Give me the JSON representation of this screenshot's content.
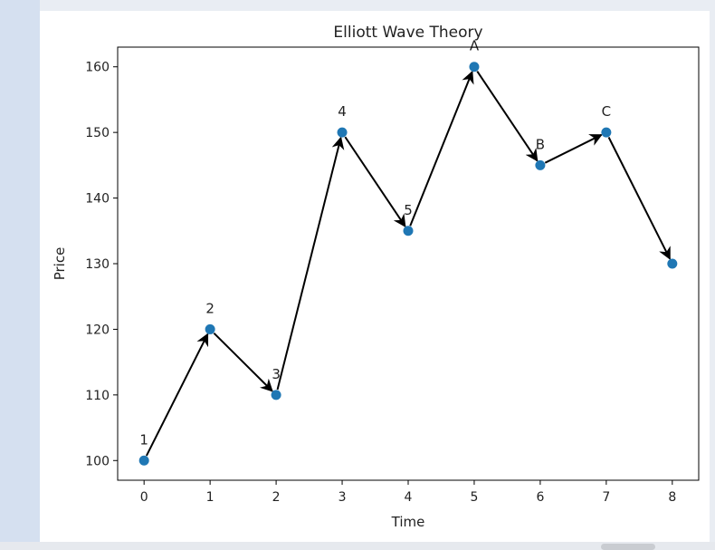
{
  "chart_data": {
    "type": "line",
    "title": "Elliott Wave Theory",
    "xlabel": "Time",
    "ylabel": "Price",
    "x": [
      0,
      1,
      2,
      3,
      4,
      5,
      6,
      7,
      8
    ],
    "y": [
      100,
      120,
      110,
      150,
      135,
      160,
      145,
      150,
      130
    ],
    "point_labels": [
      "1",
      "2",
      "3",
      "4",
      "5",
      "A",
      "B",
      "C",
      ""
    ],
    "xticks": [
      0,
      1,
      2,
      3,
      4,
      5,
      6,
      7,
      8
    ],
    "yticks": [
      100,
      110,
      120,
      130,
      140,
      150,
      160
    ],
    "xlim": [
      -0.4,
      8.4
    ],
    "ylim": [
      97,
      163
    ],
    "grid": false,
    "marker_color": "#1f77b4",
    "arrow_color": "#000000"
  }
}
